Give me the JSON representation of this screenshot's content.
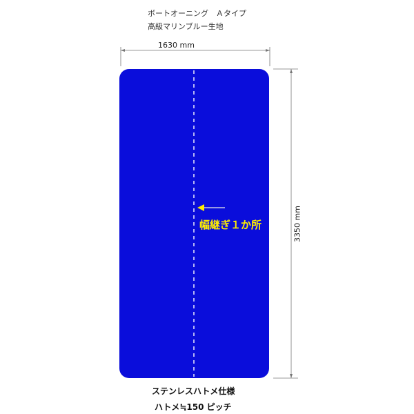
{
  "title": {
    "line1": "ボートオーニング　Ａタイプ",
    "line2": "高級マリンブルー生地"
  },
  "dimensions": {
    "width_label": "1630 mm",
    "height_label": "3350 mm"
  },
  "annotation": {
    "seam_label": "幅継ぎ１か所"
  },
  "notes": {
    "line1": "ステンレスハトメ仕様",
    "line2": "ハトメ≒150 ピッチ"
  },
  "colors": {
    "fabric": "#0a0ddb",
    "annotation": "#ffee00",
    "seam": "#ffffff",
    "dimension_line": "#666666"
  }
}
